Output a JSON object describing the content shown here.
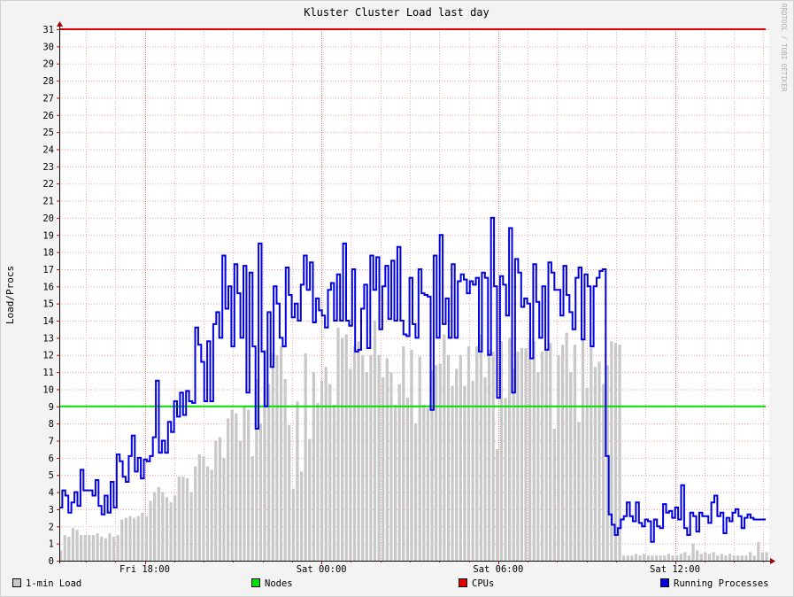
{
  "chart_data": {
    "type": "area",
    "title": "Kluster Cluster Load last day",
    "ylabel": "Load/Procs",
    "watermark": "RRDTOOL / TOBI OETIKER",
    "ylim": [
      0,
      31
    ],
    "y_ticks": [
      0,
      1,
      2,
      3,
      4,
      5,
      6,
      7,
      8,
      9,
      10,
      11,
      12,
      13,
      14,
      15,
      16,
      17,
      18,
      19,
      20,
      21,
      22,
      23,
      24,
      25,
      26,
      27,
      28,
      29,
      30,
      31
    ],
    "x_range_hours": [
      15.1,
      39.2
    ],
    "x_ticks": [
      {
        "hour": 18,
        "label": "Fri 18:00"
      },
      {
        "hour": 24,
        "label": "Sat 00:00"
      },
      {
        "hour": 30,
        "label": "Sat 06:00"
      },
      {
        "hour": 36,
        "label": "Sat 12:00"
      }
    ],
    "legend_placement": "bottom",
    "series": [
      {
        "name": "1-min Load",
        "kind": "bars",
        "color": "#c8c8c8",
        "values": [
          0.6,
          1.5,
          1.4,
          1.9,
          1.8,
          1.5,
          1.5,
          1.5,
          1.5,
          1.6,
          1.4,
          1.3,
          1.6,
          1.4,
          1.5,
          2.4,
          2.5,
          2.6,
          2.5,
          2.6,
          2.8,
          2.6,
          3.5,
          4.0,
          4.3,
          4.0,
          3.7,
          3.4,
          3.8,
          4.9,
          4.9,
          4.8,
          4.0,
          5.5,
          6.2,
          6.1,
          5.5,
          5.3,
          7.0,
          7.2,
          6.0,
          8.3,
          8.8,
          8.6,
          7.0,
          9.0,
          8.8,
          6.1,
          10.6,
          8.0,
          12.3,
          10.3,
          12.1,
          12.0,
          12.5,
          10.6,
          7.9,
          4.2,
          9.3,
          5.2,
          12.1,
          7.1,
          11.0,
          9.2,
          10.5,
          11.3,
          10.3,
          9.1,
          13.6,
          13.0,
          13.2,
          11.2,
          12.5,
          12.8,
          12.0,
          11.0,
          12.0,
          14.0,
          12.0,
          10.7,
          11.8,
          11.0,
          9.1,
          10.3,
          12.5,
          9.5,
          12.3,
          8.0,
          11.9,
          9.1,
          8.9,
          11.1,
          11.4,
          11.5,
          13.2,
          12.0,
          10.2,
          11.2,
          12.0,
          10.2,
          12.5,
          10.5,
          12.5,
          13.2,
          10.7,
          12.3,
          12.2,
          6.5,
          12.8,
          9.5,
          13.0,
          11.2,
          12.2,
          12.4,
          12.4,
          13.0,
          12.8,
          11.0,
          12.2,
          12.3,
          12.7,
          7.7,
          12.0,
          12.6,
          13.3,
          11.0,
          12.6,
          8.1,
          12.9,
          10.1,
          12.4,
          11.3,
          11.6,
          10.3,
          11.4,
          12.8,
          12.7,
          12.6,
          0.3,
          0.3,
          0.3,
          0.4,
          0.3,
          0.4,
          0.3,
          0.3,
          0.3,
          0.3,
          0.3,
          0.4,
          0.3,
          0.3,
          0.4,
          0.5,
          0.3,
          1.0,
          0.6,
          0.4,
          0.5,
          0.4,
          0.5,
          0.3,
          0.4,
          0.3,
          0.4,
          0.3,
          0.3,
          0.3,
          0.3,
          0.5,
          0.3,
          1.1,
          0.5,
          0.5
        ]
      },
      {
        "name": "Nodes",
        "kind": "line",
        "color": "#00e000",
        "value": 9
      },
      {
        "name": "CPUs",
        "kind": "line",
        "color": "#e00000",
        "value": 31
      },
      {
        "name": "Running Processes",
        "kind": "step",
        "color": "#0000e0",
        "values": [
          3.1,
          4.1,
          3.8,
          2.8,
          3.4,
          4.0,
          3.2,
          5.3,
          4.1,
          4.1,
          4.1,
          3.8,
          4.7,
          3.2,
          2.7,
          3.8,
          2.8,
          4.6,
          3.1,
          6.2,
          5.8,
          4.9,
          4.6,
          6.1,
          7.3,
          5.2,
          6.0,
          4.8,
          5.9,
          5.8,
          6.1,
          7.2,
          10.5,
          6.3,
          7.0,
          6.3,
          8.1,
          7.5,
          9.3,
          8.4,
          9.8,
          8.5,
          9.9,
          9.3,
          9.2,
          13.6,
          12.6,
          11.6,
          9.3,
          12.8,
          9.3,
          13.8,
          14.5,
          13.0,
          17.8,
          14.7,
          16.0,
          12.5,
          17.3,
          15.6,
          13.0,
          17.2,
          9.8,
          16.8,
          12.5,
          7.7,
          18.5,
          12.2,
          9.0,
          14.5,
          11.3,
          16.0,
          15.0,
          13.0,
          12.5,
          17.1,
          15.5,
          14.2,
          15.0,
          14.0,
          16.1,
          17.8,
          15.8,
          17.4,
          13.9,
          15.3,
          14.6,
          14.3,
          13.6,
          15.8,
          16.2,
          14.0,
          16.7,
          14.0,
          18.5,
          14.0,
          13.7,
          17.0,
          12.2,
          12.3,
          14.7,
          16.1,
          12.4,
          17.8,
          15.8,
          17.7,
          13.5,
          16.0,
          17.2,
          14.1,
          17.5,
          14.0,
          18.3,
          14.0,
          13.2,
          13.1,
          16.5,
          13.8,
          13.0,
          17.0,
          15.6,
          15.5,
          15.4,
          8.8,
          17.8,
          13.0,
          19.0,
          13.8,
          15.3,
          13.0,
          17.3,
          13.0,
          16.3,
          16.7,
          16.4,
          15.6,
          16.3,
          16.1,
          16.5,
          12.2,
          16.8,
          16.5,
          12.0,
          20.0,
          16.0,
          9.5,
          16.6,
          16.1,
          14.3,
          19.4,
          9.8,
          17.6,
          16.8,
          14.8,
          15.3,
          15.0,
          11.8,
          17.3,
          15.1,
          13.0,
          16.0,
          12.3,
          17.4,
          16.8,
          15.8,
          15.8,
          14.3,
          17.2,
          15.5,
          14.5,
          13.5,
          16.5,
          17.1,
          12.9,
          16.7,
          16.0,
          12.5,
          16.0,
          16.5,
          16.9,
          17.0,
          6.1,
          2.7,
          2.1,
          1.5,
          1.9,
          2.4,
          2.6,
          3.4,
          2.6,
          2.3,
          3.4,
          2.2,
          2.0,
          2.4,
          2.3,
          1.1,
          2.4,
          2.0,
          1.9,
          3.3,
          2.8,
          2.9,
          2.5,
          3.1,
          2.4,
          4.4,
          1.9,
          1.5,
          2.8,
          2.6,
          1.7,
          2.8,
          2.6,
          2.6,
          2.2,
          3.4,
          3.8,
          2.6,
          2.8,
          1.6,
          2.5,
          2.3,
          2.8,
          3.0,
          2.6,
          1.9,
          2.5,
          2.7,
          2.5,
          2.4,
          2.4,
          2.4,
          2.4
        ]
      }
    ]
  }
}
